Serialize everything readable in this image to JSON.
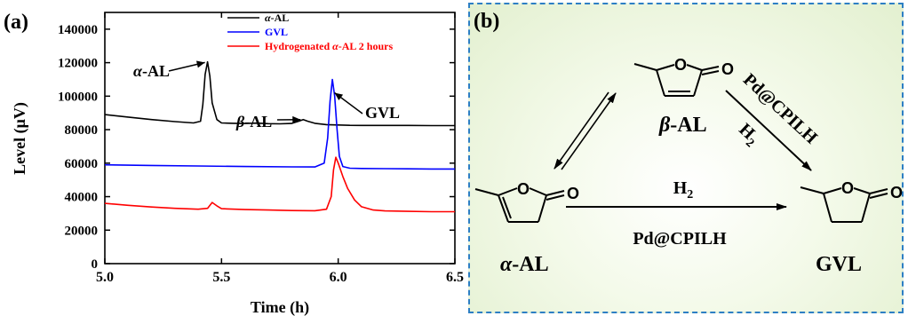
{
  "panel_a": {
    "label": "(a)",
    "chart_data": {
      "type": "line",
      "xlabel": "Time (h)",
      "ylabel": "Level (μV)",
      "xlim": [
        5.0,
        6.5
      ],
      "ylim": [
        0,
        150000
      ],
      "x_ticks": [
        "5.0",
        "5.5",
        "6.0",
        "6.5"
      ],
      "y_ticks": [
        "0",
        "20000",
        "40000",
        "60000",
        "80000",
        "100000",
        "120000",
        "140000"
      ],
      "legend_placement": "top-right",
      "series": [
        {
          "name": "α-AL",
          "legend_prefix": "α",
          "legend_suffix": "-AL",
          "color": "#000000",
          "x": [
            5.0,
            5.1,
            5.2,
            5.3,
            5.38,
            5.41,
            5.42,
            5.43,
            5.44,
            5.45,
            5.46,
            5.48,
            5.5,
            5.55,
            5.6,
            5.65,
            5.7,
            5.75,
            5.8,
            5.83,
            5.85,
            5.87,
            5.9,
            5.95,
            6.0,
            6.05,
            6.1,
            6.2,
            6.3,
            6.4,
            6.5
          ],
          "y": [
            89000,
            87500,
            86000,
            84800,
            84000,
            85000,
            95000,
            113000,
            120500,
            112000,
            96000,
            86000,
            84000,
            83800,
            83700,
            83900,
            83600,
            83500,
            83700,
            85000,
            86000,
            85000,
            83800,
            83000,
            82800,
            82600,
            82500,
            82500,
            82500,
            82400,
            82400
          ]
        },
        {
          "name": "GVL",
          "color": "#0000ff",
          "x": [
            5.0,
            5.2,
            5.4,
            5.6,
            5.8,
            5.9,
            5.94,
            5.955,
            5.965,
            5.975,
            5.985,
            5.995,
            6.005,
            6.02,
            6.05,
            6.1,
            6.2,
            6.3,
            6.4,
            6.5
          ],
          "y": [
            59000,
            58600,
            58300,
            58000,
            57800,
            57700,
            60000,
            75000,
            97000,
            110000,
            100000,
            80000,
            64000,
            58000,
            57000,
            56800,
            56700,
            56600,
            56500,
            56500
          ]
        },
        {
          "name": "Hydrogenated α-AL 2 hours",
          "legend_prefix": "Hydrogenated ",
          "legend_greek": "α",
          "legend_suffix": "-AL 2 hours",
          "color": "#ff0000",
          "x": [
            5.0,
            5.1,
            5.2,
            5.3,
            5.4,
            5.44,
            5.46,
            5.48,
            5.5,
            5.6,
            5.7,
            5.8,
            5.9,
            5.95,
            5.97,
            5.98,
            5.99,
            6.0,
            6.02,
            6.04,
            6.07,
            6.1,
            6.15,
            6.2,
            6.3,
            6.4,
            6.5
          ],
          "y": [
            36000,
            34800,
            33800,
            33000,
            32500,
            33000,
            36500,
            34500,
            32800,
            32300,
            32000,
            31700,
            31600,
            32500,
            40000,
            56000,
            63500,
            60000,
            52000,
            45000,
            38000,
            34000,
            32000,
            31500,
            31200,
            31000,
            31000
          ]
        }
      ],
      "annotations": [
        {
          "id": "alpha",
          "greek": "α",
          "text": "-AL",
          "x": 5.44,
          "y": 120500
        },
        {
          "id": "beta",
          "greek": "β",
          "text": "-AL",
          "x": 5.85,
          "y": 86000
        },
        {
          "id": "gvl",
          "greek": "",
          "text": "GVL",
          "x": 5.975,
          "y": 103000
        }
      ]
    }
  },
  "panel_b": {
    "label": "(b)",
    "alpha_name_greek": "α",
    "alpha_name_suffix": "-AL",
    "beta_name_greek": "β",
    "beta_name_suffix": "-AL",
    "gvl_name": "GVL",
    "ring_oxygen": "O",
    "carbonyl_oxygen": "O",
    "h2_main": "H",
    "h2_sub": "2",
    "catalyst_main": "Pd@CPILH",
    "catalyst_diag": "Pd@CPILH",
    "h2_diag": "H",
    "h2_diag_sub": "2"
  }
}
